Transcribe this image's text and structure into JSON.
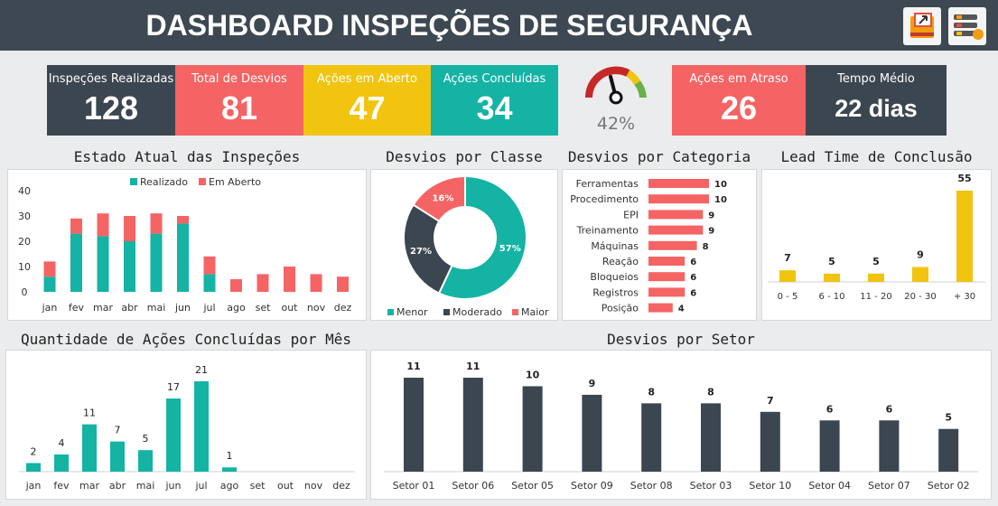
{
  "header": {
    "title": "DASHBOARD INSPEÇÕES DE SEGURANÇA"
  },
  "kpis": [
    {
      "label": "Inspeções Realizadas",
      "value": "128"
    },
    {
      "label": "Total de Desvios",
      "value": "81"
    },
    {
      "label": "Ações em Aberto",
      "value": "47"
    },
    {
      "label": "Ações Concluídas",
      "value": "34"
    },
    {
      "label": "Ações em Atraso",
      "value": "26"
    },
    {
      "label": "Tempo Médio",
      "value": "22 dias"
    }
  ],
  "gauge": {
    "label": "42%",
    "value": 0.42
  },
  "colors": {
    "dark": "#3b4650",
    "red": "#f56464",
    "yellow": "#f1c40f",
    "teal": "#14b3a4",
    "gray": "#8e9499"
  },
  "sections": {
    "estado": "Estado Atual das Inspeções",
    "classe": "Desvios por Classe",
    "categoria": "Desvios por Categoria",
    "lead": "Lead Time de Conclusão",
    "acoes": "Quantidade de Ações Concluídas por Mês",
    "setor": "Desvios por Setor"
  },
  "chart_data": [
    {
      "id": "estado",
      "type": "bar",
      "title": "Estado Atual das Inspeções",
      "categories": [
        "jan",
        "fev",
        "mar",
        "abr",
        "mai",
        "jun",
        "jul",
        "ago",
        "set",
        "out",
        "nov",
        "dez"
      ],
      "series": [
        {
          "name": "Realizado",
          "values": [
            6,
            23,
            22,
            20,
            23,
            27,
            7,
            0,
            0,
            0,
            0,
            0
          ]
        },
        {
          "name": "Em Aberto",
          "values": [
            6,
            6,
            9,
            10,
            8,
            3,
            7,
            5,
            7,
            10,
            7,
            6
          ]
        }
      ],
      "yticks": [
        0,
        10,
        20,
        30,
        40
      ],
      "ylim": [
        0,
        40
      ]
    },
    {
      "id": "classe",
      "type": "pie",
      "title": "Desvios por Classe",
      "labels": [
        "Menor",
        "Moderado",
        "Maior"
      ],
      "values": [
        57,
        27,
        16
      ],
      "value_labels": [
        "57%",
        "27%",
        "16%"
      ]
    },
    {
      "id": "categoria",
      "type": "bar",
      "title": "Desvios por Categoria",
      "categories": [
        "Ferramentas",
        "Procedimento",
        "EPI",
        "Treinamento",
        "Máquinas",
        "Reação",
        "Bloqueios",
        "Registros",
        "Posição"
      ],
      "values": [
        10,
        10,
        9,
        9,
        8,
        6,
        6,
        6,
        4
      ],
      "xlim": [
        0,
        10
      ]
    },
    {
      "id": "lead",
      "type": "bar",
      "title": "Lead Time de Conclusão",
      "categories": [
        "0 - 5",
        "6 - 10",
        "11 - 20",
        "20 - 30",
        "+ 30"
      ],
      "values": [
        7,
        5,
        5,
        9,
        55
      ],
      "ylim": [
        0,
        55
      ]
    },
    {
      "id": "acoes",
      "type": "bar",
      "title": "Quantidade de Ações Concluídas por Mês",
      "categories": [
        "jan",
        "fev",
        "mar",
        "abr",
        "mai",
        "jun",
        "jul",
        "ago",
        "set",
        "out",
        "nov",
        "dez"
      ],
      "values": [
        2,
        4,
        11,
        7,
        5,
        17,
        21,
        1,
        null,
        null,
        null,
        null
      ],
      "ylim": [
        0,
        21
      ]
    },
    {
      "id": "setor",
      "type": "bar",
      "title": "Desvios por Setor",
      "categories": [
        "Setor 01",
        "Setor 06",
        "Setor 05",
        "Setor 09",
        "Setor 08",
        "Setor 03",
        "Setor 10",
        "Setor 04",
        "Setor 07",
        "Setor 02"
      ],
      "values": [
        11,
        11,
        10,
        9,
        8,
        8,
        7,
        6,
        6,
        5
      ],
      "ylim": [
        0,
        11
      ]
    }
  ]
}
